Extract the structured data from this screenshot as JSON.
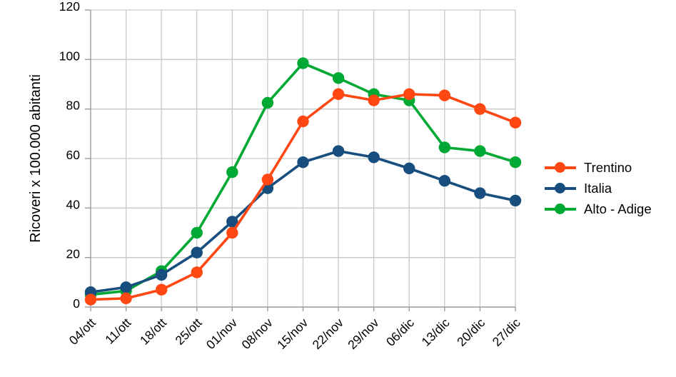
{
  "chart_data": {
    "type": "line",
    "title": "",
    "xlabel": "",
    "ylabel": "Ricoveri x 100.000 abitanti",
    "ylim": [
      0,
      120
    ],
    "yticks": [
      0,
      20,
      40,
      60,
      80,
      100,
      120
    ],
    "grid": true,
    "legend_position": "right",
    "categories": [
      "04/ott",
      "11/ott",
      "18/ott",
      "25/ott",
      "01/nov",
      "08/nov",
      "15/nov",
      "22/nov",
      "29/nov",
      "06/dic",
      "13/dic",
      "20/dic",
      "27/dic"
    ],
    "series": [
      {
        "name": "Trentino",
        "color": "#FF4713",
        "values": [
          3,
          3.5,
          7,
          14,
          30,
          51.5,
          75,
          86,
          83.5,
          86,
          85.5,
          80,
          74.5
        ]
      },
      {
        "name": "Italia",
        "color": "#174E7E",
        "values": [
          6,
          8,
          13,
          22,
          34.5,
          48,
          58.5,
          63,
          60.5,
          56,
          51,
          46,
          43
        ]
      },
      {
        "name": "Alto - Adige",
        "color": "#00A933",
        "values": [
          5,
          6.5,
          14.5,
          30,
          54.5,
          82.5,
          98.5,
          92.5,
          86,
          83.5,
          64.5,
          63,
          58.5
        ]
      }
    ]
  },
  "colors": {
    "background": "#ffffff",
    "gridline": "#c9c9c9",
    "axis": "#9c9c9c",
    "text": "#000000"
  }
}
